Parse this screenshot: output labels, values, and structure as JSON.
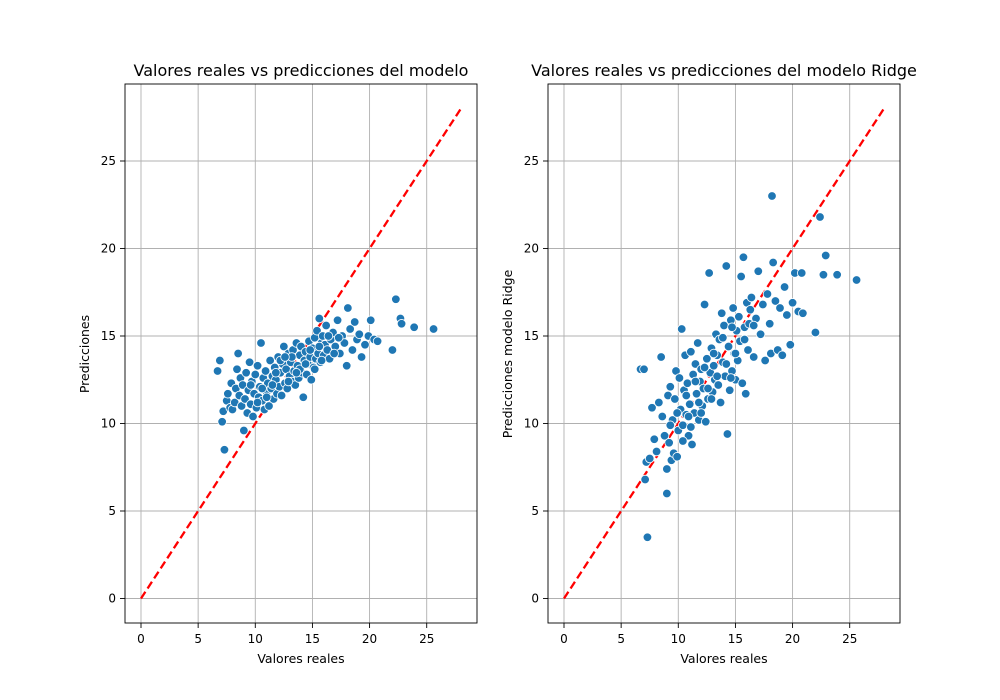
{
  "chart_data": [
    {
      "type": "scatter",
      "title": "Valores reales vs predicciones del modelo",
      "xlabel": "Valores reales",
      "ylabel": "Predicciones",
      "xlim": [
        -1.4,
        29.4
      ],
      "ylim": [
        -1.4,
        29.4
      ],
      "xticks": [
        0,
        5,
        10,
        15,
        20,
        25
      ],
      "yticks": [
        0,
        5,
        10,
        15,
        20,
        25
      ],
      "grid": true,
      "point_color": "#1f77b4",
      "reference_line": {
        "x": [
          0,
          28
        ],
        "y": [
          0,
          28
        ],
        "color": "#ff0000",
        "style": "dashed"
      },
      "points": [
        [
          6.7,
          13.0
        ],
        [
          6.9,
          13.6
        ],
        [
          7.1,
          10.1
        ],
        [
          7.2,
          10.7
        ],
        [
          7.3,
          8.5
        ],
        [
          7.5,
          11.3
        ],
        [
          7.6,
          11.7
        ],
        [
          7.8,
          10.9
        ],
        [
          7.9,
          12.3
        ],
        [
          8.0,
          10.8
        ],
        [
          8.2,
          11.2
        ],
        [
          8.3,
          12.0
        ],
        [
          8.4,
          13.1
        ],
        [
          8.5,
          14.0
        ],
        [
          8.6,
          11.6
        ],
        [
          8.7,
          12.6
        ],
        [
          8.8,
          11.0
        ],
        [
          8.9,
          12.2
        ],
        [
          9.0,
          9.6
        ],
        [
          9.1,
          11.4
        ],
        [
          9.2,
          12.9
        ],
        [
          9.3,
          10.6
        ],
        [
          9.4,
          11.9
        ],
        [
          9.5,
          13.5
        ],
        [
          9.6,
          11.1
        ],
        [
          9.7,
          12.4
        ],
        [
          9.8,
          10.4
        ],
        [
          9.9,
          11.7
        ],
        [
          10.0,
          12.8
        ],
        [
          10.1,
          10.9
        ],
        [
          10.2,
          13.3
        ],
        [
          10.3,
          11.5
        ],
        [
          10.4,
          12.1
        ],
        [
          10.5,
          14.6
        ],
        [
          10.6,
          11.3
        ],
        [
          10.7,
          12.6
        ],
        [
          10.8,
          10.8
        ],
        [
          10.9,
          13.0
        ],
        [
          11.0,
          11.8
        ],
        [
          11.1,
          12.3
        ],
        [
          11.2,
          11.0
        ],
        [
          11.3,
          13.6
        ],
        [
          11.4,
          12.0
        ],
        [
          11.5,
          12.7
        ],
        [
          11.6,
          11.4
        ],
        [
          11.7,
          13.2
        ],
        [
          11.8,
          12.5
        ],
        [
          11.9,
          11.7
        ],
        [
          12.0,
          13.8
        ],
        [
          12.1,
          12.1
        ],
        [
          12.2,
          12.9
        ],
        [
          12.3,
          11.6
        ],
        [
          12.4,
          13.4
        ],
        [
          12.5,
          14.4
        ],
        [
          12.6,
          12.3
        ],
        [
          12.7,
          13.1
        ],
        [
          12.8,
          12.0
        ],
        [
          12.9,
          14.0
        ],
        [
          13.0,
          12.7
        ],
        [
          13.1,
          13.5
        ],
        [
          13.2,
          12.4
        ],
        [
          13.3,
          14.2
        ],
        [
          13.4,
          13.0
        ],
        [
          13.5,
          12.2
        ],
        [
          13.6,
          14.6
        ],
        [
          13.7,
          13.3
        ],
        [
          13.8,
          12.6
        ],
        [
          13.9,
          13.9
        ],
        [
          14.0,
          14.4
        ],
        [
          14.1,
          12.9
        ],
        [
          14.2,
          11.5
        ],
        [
          14.3,
          13.6
        ],
        [
          14.4,
          14.1
        ],
        [
          14.5,
          12.8
        ],
        [
          14.6,
          13.4
        ],
        [
          14.7,
          14.7
        ],
        [
          14.8,
          13.8
        ],
        [
          14.9,
          12.5
        ],
        [
          15.0,
          14.3
        ],
        [
          15.1,
          13.2
        ],
        [
          15.2,
          14.9
        ],
        [
          15.3,
          13.7
        ],
        [
          15.4,
          15.3
        ],
        [
          15.5,
          14.0
        ],
        [
          15.6,
          16.0
        ],
        [
          15.7,
          13.5
        ],
        [
          15.8,
          14.6
        ],
        [
          15.9,
          15.0
        ],
        [
          16.0,
          13.9
        ],
        [
          16.1,
          14.5
        ],
        [
          16.2,
          15.6
        ],
        [
          16.3,
          14.2
        ],
        [
          16.5,
          13.7
        ],
        [
          16.6,
          14.8
        ],
        [
          16.8,
          15.2
        ],
        [
          17.0,
          14.4
        ],
        [
          17.2,
          15.9
        ],
        [
          17.4,
          14.0
        ],
        [
          17.6,
          15.0
        ],
        [
          17.8,
          14.6
        ],
        [
          18.0,
          13.3
        ],
        [
          18.1,
          16.6
        ],
        [
          18.3,
          15.4
        ],
        [
          18.5,
          14.2
        ],
        [
          18.7,
          15.8
        ],
        [
          18.9,
          14.8
        ],
        [
          19.1,
          15.1
        ],
        [
          19.3,
          13.8
        ],
        [
          19.6,
          14.5
        ],
        [
          19.9,
          15.0
        ],
        [
          20.1,
          15.9
        ],
        [
          20.4,
          14.8
        ],
        [
          20.7,
          14.7
        ],
        [
          22.0,
          14.2
        ],
        [
          22.3,
          17.1
        ],
        [
          22.7,
          16.0
        ],
        [
          22.8,
          15.7
        ],
        [
          23.9,
          15.5
        ],
        [
          25.6,
          15.4
        ],
        [
          11.5,
          12.2
        ],
        [
          12.2,
          13.6
        ],
        [
          13.2,
          13.8
        ],
        [
          14.8,
          14.2
        ],
        [
          15.6,
          14.4
        ],
        [
          16.4,
          15.0
        ],
        [
          10.6,
          12.0
        ],
        [
          9.6,
          12.2
        ],
        [
          12.9,
          12.4
        ],
        [
          13.9,
          13.1
        ],
        [
          15.2,
          13.1
        ],
        [
          16.9,
          14.0
        ],
        [
          17.3,
          14.9
        ],
        [
          11.0,
          11.5
        ],
        [
          10.2,
          11.2
        ],
        [
          14.4,
          13.4
        ],
        [
          15.8,
          13.6
        ],
        [
          12.6,
          13.8
        ],
        [
          13.6,
          12.9
        ],
        [
          11.8,
          12.9
        ]
      ]
    },
    {
      "type": "scatter",
      "title": "Valores reales vs predicciones del modelo Ridge",
      "xlabel": "Valores reales",
      "ylabel": "Predicciones modelo Ridge",
      "xlim": [
        -1.4,
        29.4
      ],
      "ylim": [
        -1.4,
        29.4
      ],
      "xticks": [
        0,
        5,
        10,
        15,
        20,
        25
      ],
      "yticks": [
        0,
        5,
        10,
        15,
        20,
        25
      ],
      "grid": true,
      "point_color": "#1f77b4",
      "reference_line": {
        "x": [
          0,
          28
        ],
        "y": [
          0,
          28
        ],
        "color": "#ff0000",
        "style": "dashed"
      },
      "points": [
        [
          6.7,
          13.1
        ],
        [
          7.0,
          13.1
        ],
        [
          7.1,
          6.8
        ],
        [
          7.2,
          7.8
        ],
        [
          7.3,
          3.5
        ],
        [
          7.5,
          8.0
        ],
        [
          7.7,
          10.9
        ],
        [
          7.9,
          9.1
        ],
        [
          8.1,
          8.4
        ],
        [
          8.3,
          11.2
        ],
        [
          8.5,
          13.8
        ],
        [
          8.6,
          10.4
        ],
        [
          8.8,
          9.3
        ],
        [
          9.0,
          7.4
        ],
        [
          9.0,
          6.0
        ],
        [
          9.1,
          11.6
        ],
        [
          9.2,
          8.9
        ],
        [
          9.3,
          12.1
        ],
        [
          9.4,
          7.9
        ],
        [
          9.5,
          10.2
        ],
        [
          9.6,
          8.3
        ],
        [
          9.7,
          11.4
        ],
        [
          9.8,
          13.0
        ],
        [
          9.9,
          8.1
        ],
        [
          10.0,
          9.6
        ],
        [
          10.1,
          12.6
        ],
        [
          10.2,
          10.8
        ],
        [
          10.3,
          15.4
        ],
        [
          10.4,
          9.9
        ],
        [
          10.5,
          11.9
        ],
        [
          10.6,
          13.9
        ],
        [
          10.7,
          10.5
        ],
        [
          10.8,
          12.3
        ],
        [
          10.9,
          9.3
        ],
        [
          11.0,
          11.1
        ],
        [
          11.1,
          14.1
        ],
        [
          11.2,
          8.8
        ],
        [
          11.3,
          12.8
        ],
        [
          11.4,
          10.6
        ],
        [
          11.5,
          13.4
        ],
        [
          11.6,
          11.7
        ],
        [
          11.7,
          14.6
        ],
        [
          11.8,
          10.2
        ],
        [
          11.9,
          12.4
        ],
        [
          12.0,
          13.1
        ],
        [
          12.1,
          11.0
        ],
        [
          12.2,
          12.0
        ],
        [
          12.3,
          16.8
        ],
        [
          12.4,
          10.1
        ],
        [
          12.5,
          13.7
        ],
        [
          12.6,
          11.4
        ],
        [
          12.7,
          18.6
        ],
        [
          12.8,
          12.9
        ],
        [
          12.9,
          14.3
        ],
        [
          13.0,
          11.8
        ],
        [
          13.1,
          13.3
        ],
        [
          13.2,
          12.5
        ],
        [
          13.3,
          15.1
        ],
        [
          13.4,
          13.9
        ],
        [
          13.5,
          12.2
        ],
        [
          13.6,
          14.8
        ],
        [
          13.7,
          11.2
        ],
        [
          13.8,
          16.3
        ],
        [
          13.9,
          13.5
        ],
        [
          14.0,
          15.6
        ],
        [
          14.1,
          12.7
        ],
        [
          14.2,
          19.0
        ],
        [
          14.3,
          9.4
        ],
        [
          14.4,
          14.4
        ],
        [
          14.5,
          11.9
        ],
        [
          14.6,
          15.9
        ],
        [
          14.7,
          13.0
        ],
        [
          14.8,
          16.6
        ],
        [
          14.9,
          14.0
        ],
        [
          15.0,
          12.5
        ],
        [
          15.1,
          15.3
        ],
        [
          15.2,
          13.6
        ],
        [
          15.3,
          16.1
        ],
        [
          15.4,
          14.7
        ],
        [
          15.5,
          18.4
        ],
        [
          15.6,
          12.3
        ],
        [
          15.7,
          19.5
        ],
        [
          15.8,
          15.5
        ],
        [
          15.9,
          11.7
        ],
        [
          16.0,
          16.9
        ],
        [
          16.1,
          14.2
        ],
        [
          16.2,
          15.7
        ],
        [
          16.4,
          17.2
        ],
        [
          16.6,
          13.8
        ],
        [
          16.8,
          16.0
        ],
        [
          17.0,
          18.7
        ],
        [
          17.2,
          15.1
        ],
        [
          17.4,
          16.8
        ],
        [
          17.6,
          13.6
        ],
        [
          17.8,
          17.4
        ],
        [
          18.0,
          15.7
        ],
        [
          18.1,
          14.0
        ],
        [
          18.2,
          23.0
        ],
        [
          18.3,
          19.2
        ],
        [
          18.5,
          17.0
        ],
        [
          18.7,
          14.2
        ],
        [
          18.9,
          16.6
        ],
        [
          19.1,
          13.9
        ],
        [
          19.3,
          17.8
        ],
        [
          19.5,
          16.2
        ],
        [
          19.8,
          14.5
        ],
        [
          20.0,
          16.9
        ],
        [
          20.2,
          18.6
        ],
        [
          20.5,
          16.4
        ],
        [
          20.8,
          18.6
        ],
        [
          20.9,
          16.3
        ],
        [
          22.0,
          15.2
        ],
        [
          22.4,
          21.8
        ],
        [
          22.7,
          18.5
        ],
        [
          22.9,
          19.6
        ],
        [
          23.9,
          18.5
        ],
        [
          25.6,
          18.2
        ],
        [
          10.9,
          10.4
        ],
        [
          11.8,
          11.2
        ],
        [
          12.6,
          12.0
        ],
        [
          13.4,
          12.7
        ],
        [
          14.2,
          13.4
        ],
        [
          15.0,
          14.0
        ],
        [
          15.8,
          14.8
        ],
        [
          16.6,
          15.6
        ],
        [
          9.9,
          10.6
        ],
        [
          10.7,
          11.6
        ],
        [
          11.5,
          12.4
        ],
        [
          12.3,
          13.2
        ],
        [
          13.1,
          14.0
        ],
        [
          13.9,
          14.9
        ],
        [
          14.7,
          15.5
        ],
        [
          9.3,
          9.9
        ],
        [
          10.4,
          9.0
        ],
        [
          11.1,
          9.8
        ],
        [
          12.0,
          10.6
        ],
        [
          12.9,
          11.4
        ],
        [
          14.6,
          12.6
        ],
        [
          16.3,
          16.5
        ]
      ]
    }
  ]
}
